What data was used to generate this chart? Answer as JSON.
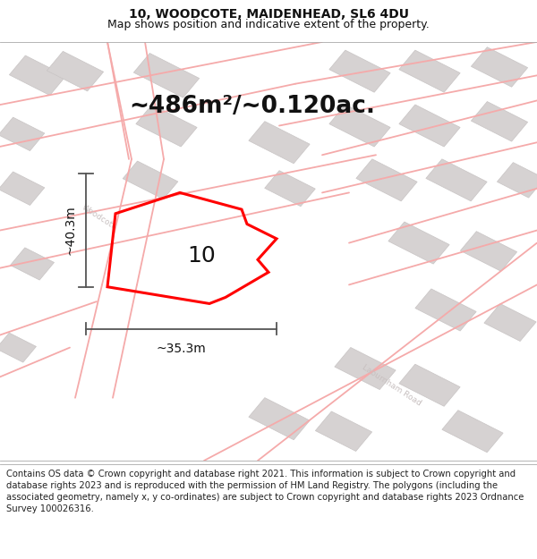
{
  "title": "10, WOODCOTE, MAIDENHEAD, SL6 4DU",
  "subtitle": "Map shows position and indicative extent of the property.",
  "area_label": "~486m²/~0.120ac.",
  "width_label": "~35.3m",
  "height_label": "~40.3m",
  "number_label": "10",
  "footer": "Contains OS data © Crown copyright and database right 2021. This information is subject to Crown copyright and database rights 2023 and is reproduced with the permission of HM Land Registry. The polygons (including the associated geometry, namely x, y co-ordinates) are subject to Crown copyright and database rights 2023 Ordnance Survey 100026316.",
  "map_bg": "#eeebeb",
  "building_fill": "#d6d2d2",
  "building_edge": "#c8c4c4",
  "road_line_color": "#f5aaaa",
  "highlight_color": "#ff0000",
  "text_color": "#111111",
  "dim_line_color": "#555555",
  "title_fontsize": 10,
  "subtitle_fontsize": 9,
  "area_fontsize": 19,
  "dim_fontsize": 10,
  "number_fontsize": 18,
  "footer_fontsize": 7.2,
  "figsize": [
    6.0,
    6.25
  ],
  "dpi": 100
}
